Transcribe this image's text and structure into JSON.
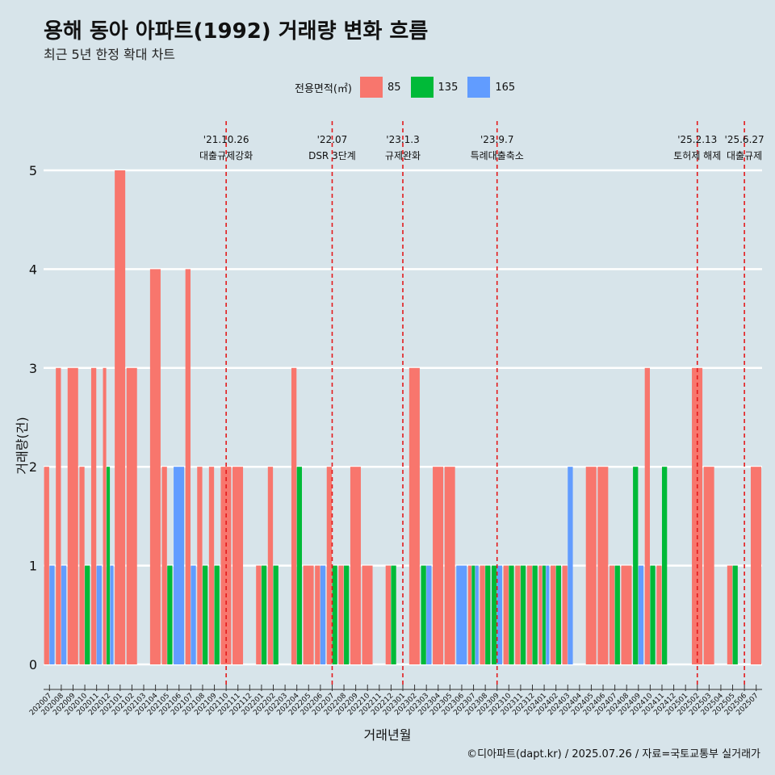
{
  "title": "용해 동아 아파트(1992) 거래량 변화 흐름",
  "subtitle": "최근 5년 한정 확대 차트",
  "legend_title": "전용면적(㎡)",
  "caption": "©디아파트(dapt.kr) / 2025.07.26 / 자료=국토교통부 실거래가",
  "colors": {
    "85": "#f8766d",
    "135": "#00ba38",
    "165": "#619cff",
    "event_line": "#e31a1c",
    "grid": "#ffffff",
    "background": "#d7e4ea"
  },
  "chart_data": {
    "type": "bar",
    "xlabel": "거래년월",
    "ylabel": "거래량(건)",
    "ylim": [
      0,
      5
    ],
    "yticks": [
      0,
      1,
      2,
      3,
      4,
      5
    ],
    "legend_position": "top",
    "series_names": [
      "85",
      "135",
      "165"
    ],
    "months": [
      "202007",
      "202008",
      "202009",
      "202010",
      "202011",
      "202012",
      "202101",
      "202102",
      "202103",
      "202104",
      "202105",
      "202106",
      "202107",
      "202108",
      "202109",
      "202110",
      "202111",
      "202112",
      "202201",
      "202202",
      "202203",
      "202204",
      "202205",
      "202206",
      "202207",
      "202208",
      "202209",
      "202210",
      "202211",
      "202212",
      "202301",
      "202302",
      "202303",
      "202304",
      "202305",
      "202306",
      "202307",
      "202308",
      "202309",
      "202310",
      "202311",
      "202312",
      "202401",
      "202402",
      "202403",
      "202404",
      "202405",
      "202406",
      "202407",
      "202408",
      "202409",
      "202410",
      "202411",
      "202412",
      "202501",
      "202502",
      "202503",
      "202504",
      "202505",
      "202506",
      "202507"
    ],
    "series": [
      {
        "name": "85",
        "values": [
          2,
          3,
          3,
          2,
          3,
          3,
          5,
          3,
          0,
          4,
          2,
          0,
          4,
          2,
          2,
          2,
          2,
          0,
          1,
          2,
          0,
          3,
          1,
          1,
          2,
          1,
          2,
          1,
          0,
          1,
          0,
          3,
          0,
          2,
          2,
          0,
          1,
          1,
          0,
          1,
          1,
          1,
          1,
          1,
          1,
          0,
          2,
          2,
          1,
          1,
          0,
          3,
          1,
          0,
          0,
          3,
          2,
          0,
          1,
          0,
          2
        ]
      },
      {
        "name": "135",
        "values": [
          0,
          0,
          0,
          1,
          0,
          2,
          0,
          0,
          0,
          0,
          1,
          0,
          0,
          1,
          1,
          0,
          0,
          0,
          1,
          1,
          0,
          2,
          0,
          0,
          1,
          1,
          0,
          0,
          0,
          1,
          0,
          0,
          1,
          0,
          0,
          0,
          1,
          1,
          1,
          1,
          1,
          1,
          1,
          1,
          0,
          0,
          0,
          0,
          1,
          0,
          2,
          1,
          2,
          0,
          0,
          0,
          0,
          0,
          1,
          0,
          0
        ]
      },
      {
        "name": "165",
        "values": [
          1,
          1,
          0,
          0,
          1,
          1,
          0,
          0,
          0,
          0,
          0,
          2,
          1,
          0,
          0,
          0,
          0,
          0,
          0,
          0,
          0,
          0,
          0,
          1,
          0,
          0,
          0,
          0,
          0,
          0,
          0,
          0,
          1,
          0,
          0,
          1,
          1,
          0,
          1,
          0,
          0,
          0,
          1,
          0,
          2,
          0,
          0,
          0,
          0,
          0,
          1,
          0,
          0,
          0,
          0,
          0,
          0,
          0,
          0,
          0,
          0
        ]
      }
    ],
    "events": [
      {
        "month": "202110",
        "date": "'21.10.26",
        "label": "대출규제강화"
      },
      {
        "month": "202207",
        "date": "'22.07",
        "label": "DSR 3단계"
      },
      {
        "month": "202301",
        "date": "'23.1.3",
        "label": "규제완화"
      },
      {
        "month": "202309",
        "date": "'23.9.7",
        "label": "특례대출축소"
      },
      {
        "month": "202502",
        "date": "'25.2.13",
        "label": "토허제 해제"
      },
      {
        "month": "202506",
        "date": "'25.6.27",
        "label": "대출규제"
      }
    ]
  }
}
